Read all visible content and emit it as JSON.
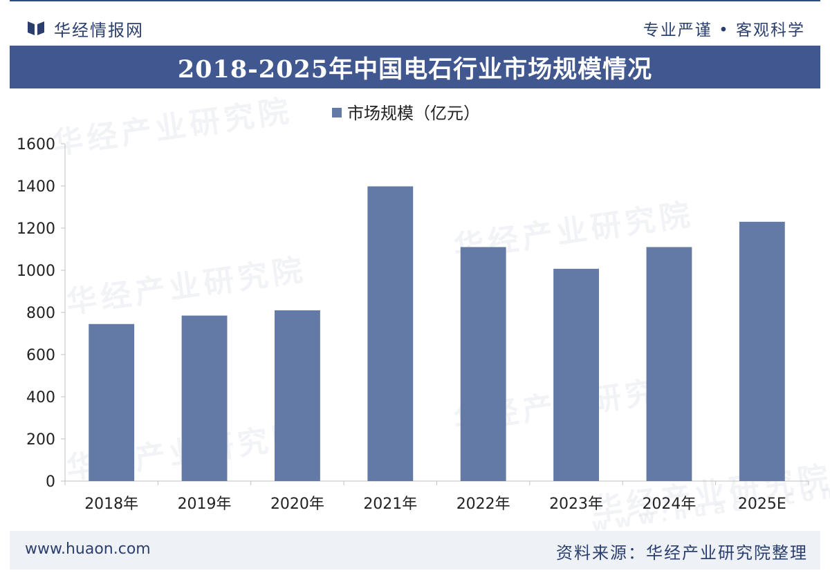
{
  "brand": {
    "name": "华经情报网",
    "slogan": "专业严谨 • 客观科学",
    "logo_icon": "book-icon"
  },
  "title": "2018-2025年中国电石行业市场规模情况",
  "watermark": {
    "text": "华经产业研究院",
    "url": "www.huaon.com"
  },
  "footer": {
    "url": "www.huaon.com",
    "source": "资料来源：华经产业研究院整理"
  },
  "colors": {
    "bar": "#647aa6",
    "title_bg": "#41578f",
    "footer_bg": "#eef1f6",
    "text": "#2b3f6e"
  },
  "chart_data": {
    "type": "bar",
    "categories": [
      "2018年",
      "2019年",
      "2020年",
      "2021年",
      "2022年",
      "2023年",
      "2024年",
      "2025E"
    ],
    "series": [
      {
        "name": "市场规模（亿元）",
        "values": [
          745,
          785,
          810,
          1398,
          1110,
          1007,
          1110,
          1230
        ]
      }
    ],
    "ylim": [
      0,
      1600
    ],
    "yticks": [
      0,
      200,
      400,
      600,
      800,
      1000,
      1200,
      1400,
      1600
    ],
    "grid": false,
    "legend_position": "top-center"
  }
}
